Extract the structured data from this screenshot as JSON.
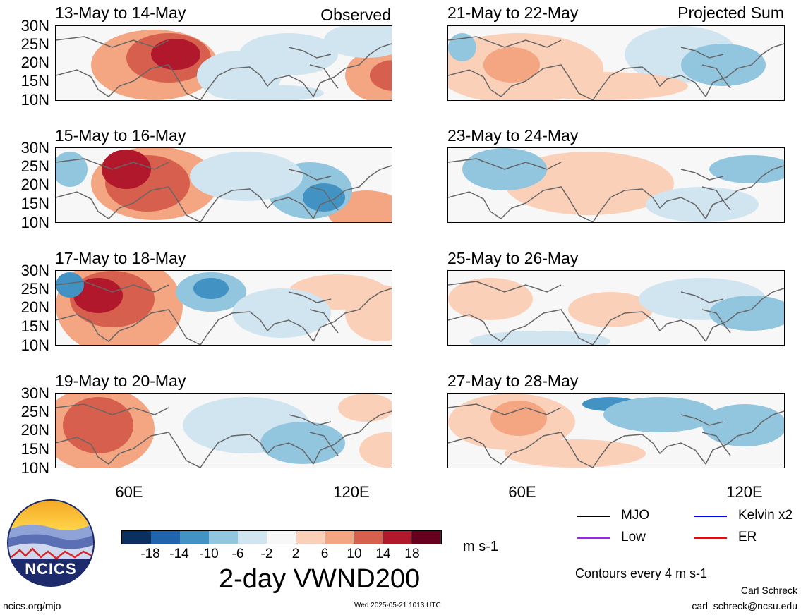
{
  "left_header": {
    "tag": "Observed"
  },
  "right_header": {
    "tag": "Projected Sum"
  },
  "panels_left": [
    {
      "date_range": "13-May to 14-May"
    },
    {
      "date_range": "15-May to 16-May"
    },
    {
      "date_range": "17-May to 18-May"
    },
    {
      "date_range": "19-May to 20-May"
    }
  ],
  "panels_right": [
    {
      "date_range": "21-May to 22-May"
    },
    {
      "date_range": "23-May to 24-May"
    },
    {
      "date_range": "25-May to 26-May"
    },
    {
      "date_range": "27-May to 28-May"
    }
  ],
  "axes": {
    "lat_labels": [
      "30N",
      "25N",
      "20N",
      "15N",
      "10N"
    ],
    "lon_labels": [
      "60E",
      "120E"
    ]
  },
  "colorbar": {
    "ticks": [
      "-18",
      "-14",
      "-10",
      "-6",
      "-2",
      "2",
      "6",
      "10",
      "14",
      "18"
    ],
    "units": "m s-1",
    "colors": [
      "#0b2f5e",
      "#1f64ad",
      "#4293c4",
      "#92c5de",
      "#d1e5f0",
      "#f7f7f7",
      "#fbd0b9",
      "#f4a582",
      "#d6604d",
      "#b2182b",
      "#67001f"
    ]
  },
  "title": "2-day VWND200",
  "legend": {
    "mjo": "MJO",
    "kelvin": "Kelvin x2",
    "low": "Low",
    "er": "ER",
    "colors": {
      "mjo": "#000000",
      "kelvin": "#0000ff",
      "low": "#a020f0",
      "er": "#ff0000"
    }
  },
  "contour_note": "Contours every 4 m s-1",
  "footer": {
    "url": "ncics.org/mjo",
    "timestamp": "Wed 2025-05-21 1013 UTC",
    "author": "Carl Schreck",
    "email": "carl_schreck@ncsu.edu"
  },
  "logo": {
    "text": "NCICS"
  }
}
